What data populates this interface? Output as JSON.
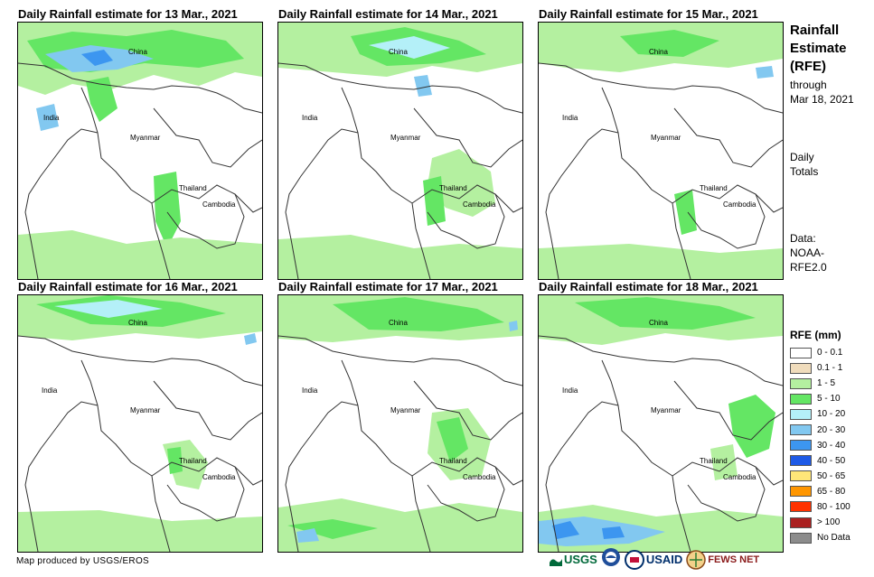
{
  "panels": [
    {
      "title": "Daily Rainfall estimate for 13 Mar., 2021"
    },
    {
      "title": "Daily Rainfall estimate for 14 Mar., 2021"
    },
    {
      "title": "Daily Rainfall estimate for 15 Mar., 2021"
    },
    {
      "title": "Daily Rainfall estimate for 16 Mar., 2021"
    },
    {
      "title": "Daily Rainfall estimate for 17 Mar., 2021"
    },
    {
      "title": "Daily Rainfall estimate for 18 Mar., 2021"
    }
  ],
  "map_labels": {
    "china": "China",
    "india": "India",
    "myanmar": "Myanmar",
    "thailand": "Thailand",
    "cambodia": "Cambodia"
  },
  "sidebar": {
    "title_lines": [
      "Rainfall",
      "Estimate",
      "(RFE)"
    ],
    "through": "through",
    "date": "Mar 18, 2021",
    "daily": "Daily",
    "totals": "Totals",
    "data_label": "Data:",
    "source_line1": "NOAA-",
    "source_line2": "RFE2.0"
  },
  "legend": {
    "title": "RFE (mm)",
    "items": [
      {
        "label": "0 - 0.1",
        "color": "#ffffff"
      },
      {
        "label": "0.1 - 1",
        "color": "#f0dcbc"
      },
      {
        "label": "1 - 5",
        "color": "#b4f0a0"
      },
      {
        "label": "5 - 10",
        "color": "#64e664"
      },
      {
        "label": "10 - 20",
        "color": "#b4f0f8"
      },
      {
        "label": "20 - 30",
        "color": "#82c8f0"
      },
      {
        "label": "30 - 40",
        "color": "#3c96f0"
      },
      {
        "label": "40 - 50",
        "color": "#1e5ae6"
      },
      {
        "label": "50 - 65",
        "color": "#ffe678"
      },
      {
        "label": "65 - 80",
        "color": "#ff9600"
      },
      {
        "label": "80 - 100",
        "color": "#ff3200"
      },
      {
        "label": "> 100",
        "color": "#aa2020"
      },
      {
        "label": "No Data",
        "color": "#8c8c8c"
      }
    ]
  },
  "credit": "Map produced by USGS/EROS",
  "logos": {
    "usgs": "USGS",
    "usaid": "USAID",
    "fewsnet": "FEWS NET"
  }
}
